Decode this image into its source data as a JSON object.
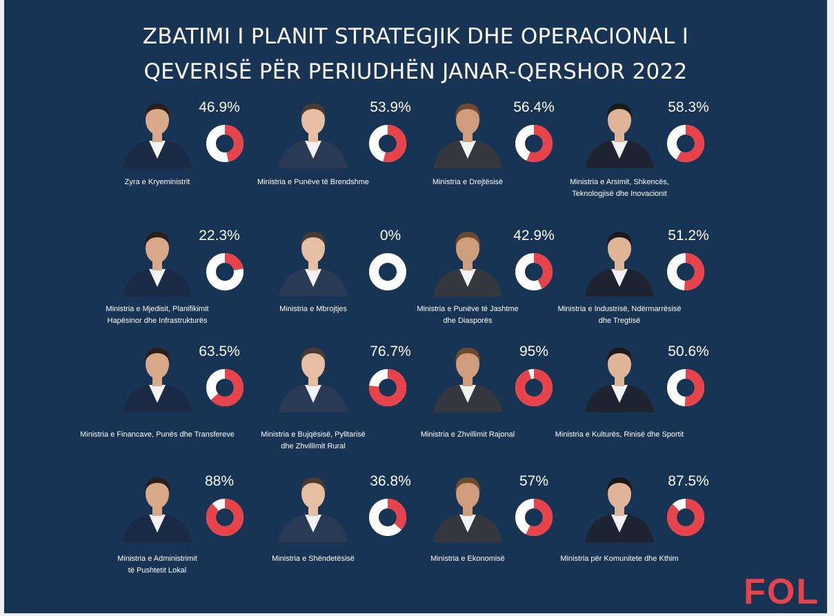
{
  "title": {
    "line1": "ZBATIMI I PLANIT STRATEGJIK DHE OPERACIONAL I",
    "line2": "QEVERISË PËR PERIUDHËN JANAR-QERSHOR 2022"
  },
  "logo_text": "FOL",
  "colors": {
    "background": "#173454",
    "completed": "#e8434a",
    "remaining": "#ffffff",
    "text": "#ffffff",
    "logo": "#e8434a"
  },
  "chart_data": {
    "type": "pie",
    "unit": "%",
    "cards": [
      {
        "value": 46.9,
        "label_text": "46.9%",
        "name_lines": [
          "Zyra e Kryeministrit"
        ]
      },
      {
        "value": 53.9,
        "label_text": "53.9%",
        "name_lines": [
          "Ministria e Punëve të Brendshme"
        ]
      },
      {
        "value": 56.4,
        "label_text": "56.4%",
        "name_lines": [
          "Ministria e Drejtësisë"
        ]
      },
      {
        "value": 58.3,
        "label_text": "58.3%",
        "name_lines": [
          "Ministria e Arsimit, Shkencës,",
          "Teknologjisë dhe Inovacionit"
        ]
      },
      {
        "value": 22.3,
        "label_text": "22.3%",
        "name_lines": [
          "Ministria e Mjedisit, Planifikimit",
          "Hapësinor dhe Infrastrukturës"
        ]
      },
      {
        "value": 0,
        "label_text": "0%",
        "name_lines": [
          "Ministria e Mbrojtjes"
        ]
      },
      {
        "value": 42.9,
        "label_text": "42.9%",
        "name_lines": [
          "Ministria e Punëve të Jashtme",
          "dhe Diasporës"
        ]
      },
      {
        "value": 51.2,
        "label_text": "51.2%",
        "name_lines": [
          "Ministria e Industrisë, Ndërmarrësisë",
          "dhe Tregtisë"
        ]
      },
      {
        "value": 63.5,
        "label_text": "63.5%",
        "name_lines": [
          "Ministria e Financave, Punës dhe Transfereve"
        ]
      },
      {
        "value": 76.7,
        "label_text": "76.7%",
        "name_lines": [
          "Ministria e Bujqësisë, Pylltarisë",
          "dhe Zhvillimit Rural"
        ]
      },
      {
        "value": 95,
        "label_text": "95%",
        "name_lines": [
          "Ministria e Zhvillimit Rajonal"
        ]
      },
      {
        "value": 50.6,
        "label_text": "50.6%",
        "name_lines": [
          "Ministria e Kulturës, Rinisë dhe Sportit"
        ]
      },
      {
        "value": 88,
        "label_text": "88%",
        "name_lines": [
          "Ministria e Administrimit",
          "të Pushtetit Lokal"
        ]
      },
      {
        "value": 36.8,
        "label_text": "36.8%",
        "name_lines": [
          "Ministria e Shëndetësisë"
        ]
      },
      {
        "value": 57,
        "label_text": "57%",
        "name_lines": [
          "Ministria  e Ekonomisë"
        ]
      },
      {
        "value": 87.5,
        "label_text": "87.5%",
        "name_lines": [
          "Ministria  për Komunitete dhe Kthim"
        ]
      }
    ]
  }
}
